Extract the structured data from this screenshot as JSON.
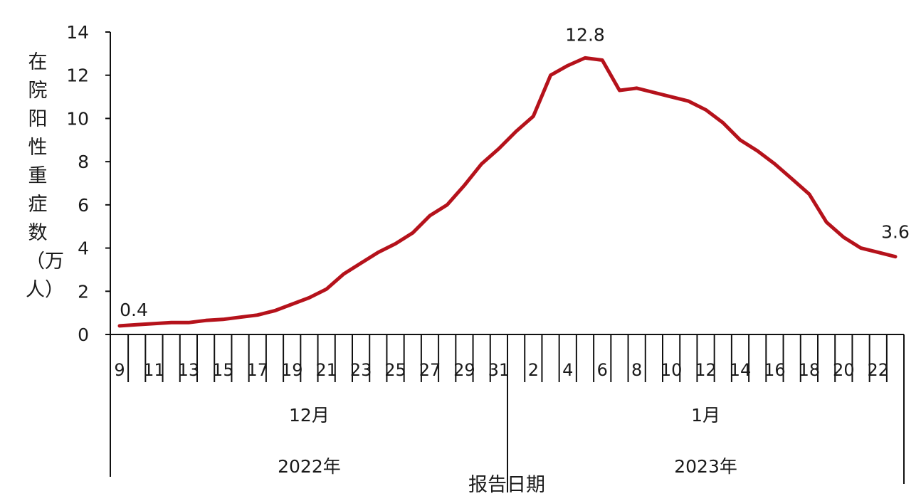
{
  "chart_data": {
    "type": "line",
    "title": "",
    "ylabel": "在院阳性重症数（万人）",
    "xlabel": "报告日期",
    "ylim": [
      0,
      14
    ],
    "yticks": [
      0,
      2,
      4,
      6,
      8,
      10,
      12,
      14
    ],
    "grid": false,
    "line_color": "#b5121b",
    "x": [
      "2022-12-09",
      "2022-12-10",
      "2022-12-11",
      "2022-12-12",
      "2022-12-13",
      "2022-12-14",
      "2022-12-15",
      "2022-12-16",
      "2022-12-17",
      "2022-12-18",
      "2022-12-19",
      "2022-12-20",
      "2022-12-21",
      "2022-12-22",
      "2022-12-23",
      "2022-12-24",
      "2022-12-25",
      "2022-12-26",
      "2022-12-27",
      "2022-12-28",
      "2022-12-29",
      "2022-12-30",
      "2022-12-31",
      "2023-01-01",
      "2023-01-02",
      "2023-01-03",
      "2023-01-04",
      "2023-01-05",
      "2023-01-06",
      "2023-01-07",
      "2023-01-08",
      "2023-01-09",
      "2023-01-10",
      "2023-01-11",
      "2023-01-12",
      "2023-01-13",
      "2023-01-14",
      "2023-01-15",
      "2023-01-16",
      "2023-01-17",
      "2023-01-18",
      "2023-01-19",
      "2023-01-20",
      "2023-01-21",
      "2023-01-22",
      "2023-01-23"
    ],
    "values": [
      0.4,
      0.45,
      0.5,
      0.55,
      0.55,
      0.65,
      0.7,
      0.8,
      0.9,
      1.1,
      1.4,
      1.7,
      2.1,
      2.8,
      3.3,
      3.8,
      4.2,
      4.7,
      5.5,
      6.0,
      6.9,
      7.9,
      8.6,
      9.4,
      10.1,
      12.0,
      12.45,
      12.8,
      12.7,
      11.3,
      11.4,
      11.2,
      11.0,
      10.8,
      10.4,
      9.8,
      9.0,
      8.5,
      7.9,
      7.2,
      6.5,
      5.2,
      4.5,
      4.0,
      3.8,
      3.6
    ],
    "tick_labels": [
      "9",
      "",
      "11",
      "",
      "13",
      "",
      "15",
      "",
      "17",
      "",
      "19",
      "",
      "21",
      "",
      "23",
      "",
      "25",
      "",
      "27",
      "",
      "29",
      "",
      "31",
      "",
      "2",
      "",
      "4",
      "",
      "6",
      "",
      "8",
      "",
      "10",
      "",
      "12",
      "",
      "14",
      "",
      "16",
      "",
      "18",
      "",
      "20",
      "",
      "22",
      ""
    ],
    "month_groups": [
      {
        "label": "12月",
        "year": "2022年",
        "days": 23
      },
      {
        "label": "1月",
        "year": "2023年",
        "days": 23
      }
    ],
    "annotations": [
      {
        "index": 0,
        "text": "0.4"
      },
      {
        "index": 27,
        "text": "12.8"
      },
      {
        "index": 45,
        "text": "3.6"
      }
    ]
  }
}
